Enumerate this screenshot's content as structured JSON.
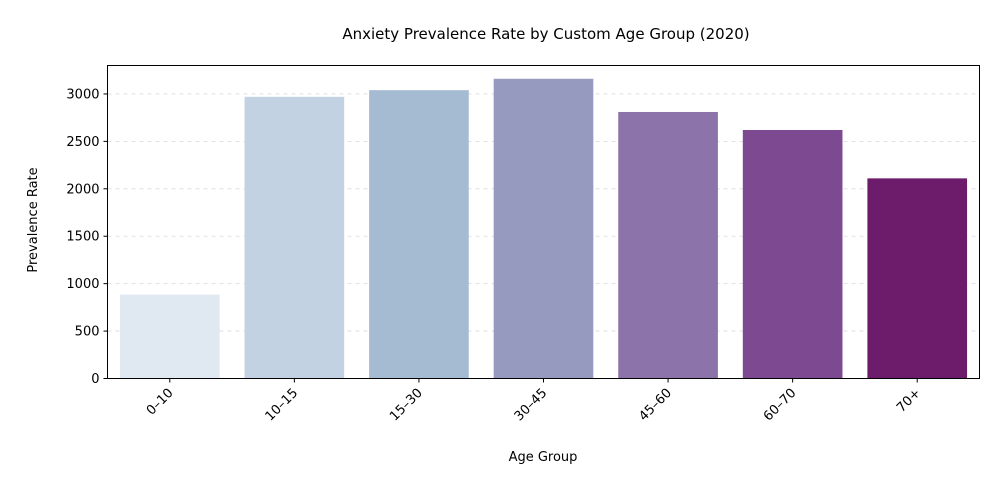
{
  "chart_data": {
    "type": "bar",
    "title": "Anxiety Prevalence Rate by Custom Age Group (2020)",
    "xlabel": "Age Group",
    "ylabel": "Prevalence Rate",
    "categories": [
      "0–10",
      "10–15",
      "15–30",
      "30–45",
      "45–60",
      "60–70",
      "70+"
    ],
    "values": [
      885,
      2970,
      3040,
      3160,
      2810,
      2620,
      2110
    ],
    "colors": [
      "#e0e8f2",
      "#c2d2e3",
      "#a5bbd2",
      "#959abe",
      "#8c73aa",
      "#7d4a91",
      "#6d1b6b"
    ],
    "ylim": [
      0,
      3300
    ],
    "yticks": [
      0,
      500,
      1000,
      1500,
      2000,
      2500,
      3000
    ],
    "grid": "y-dashed",
    "legend": "none"
  }
}
